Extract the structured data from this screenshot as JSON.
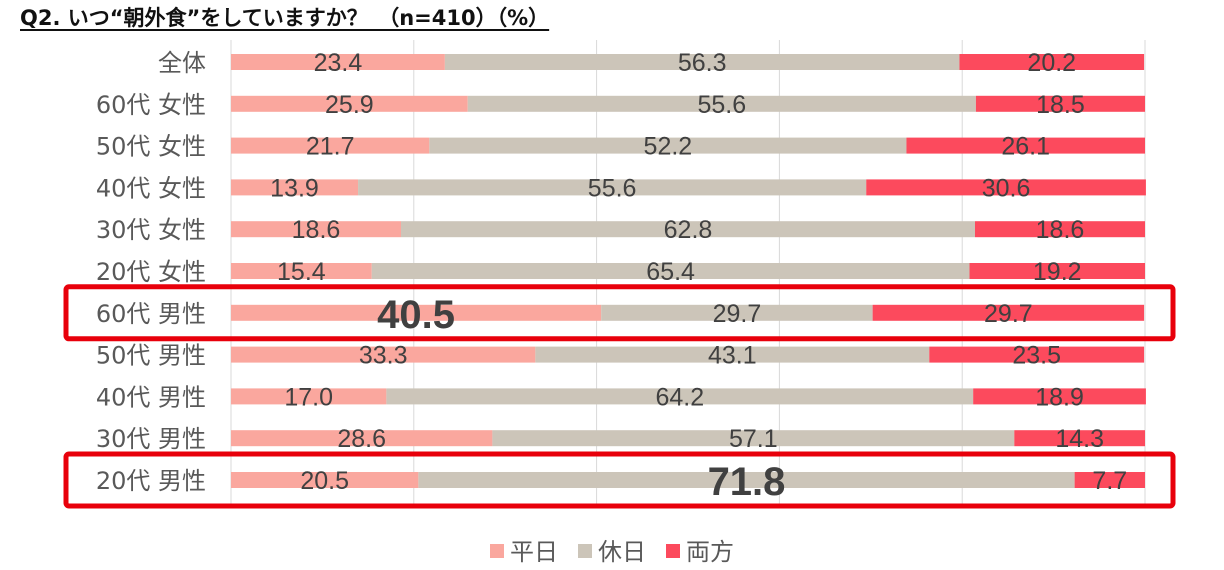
{
  "chart_data": {
    "type": "bar",
    "stacked": true,
    "orientation": "horizontal",
    "title": "Q2. いつ“朝外食”をしていますか？　（n=410）（%）",
    "categories": [
      "全体",
      "60代 女性",
      "50代 女性",
      "40代 女性",
      "30代 女性",
      "20代 女性",
      "60代 男性",
      "50代 男性",
      "40代 男性",
      "30代 男性",
      "20代 男性"
    ],
    "series": [
      {
        "name": "平日",
        "color": "#FAA79E",
        "values": [
          "23.4",
          "25.9",
          "21.7",
          "13.9",
          "18.6",
          "15.4",
          "40.5",
          "33.3",
          "17.0",
          "28.6",
          "20.5"
        ]
      },
      {
        "name": "休日",
        "color": "#CCC5B9",
        "values": [
          "56.3",
          "55.6",
          "52.2",
          "55.6",
          "62.8",
          "65.4",
          "29.7",
          "43.1",
          "64.2",
          "57.1",
          "71.8"
        ]
      },
      {
        "name": "両方",
        "color": "#FC4A5D",
        "values": [
          "20.2",
          "18.5",
          "26.1",
          "30.6",
          "18.6",
          "19.2",
          "29.7",
          "23.5",
          "18.9",
          "14.3",
          "7.7"
        ]
      }
    ],
    "xlim": [
      0,
      100
    ],
    "grid": true,
    "legend_position": "bottom",
    "highlighted_categories": [
      "60代 男性",
      "20代 男性"
    ],
    "emphasized_values": [
      {
        "category": "60代 男性",
        "series": "平日",
        "value": "40.5"
      },
      {
        "category": "20代 男性",
        "series": "休日",
        "value": "71.8"
      }
    ],
    "highlight_color": "#E8000B"
  }
}
